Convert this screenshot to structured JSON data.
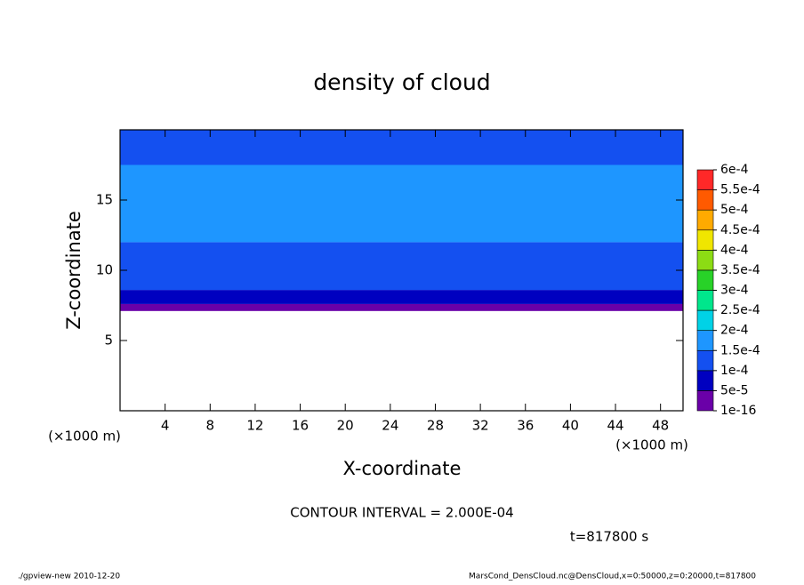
{
  "chart_data": {
    "type": "contour",
    "title": "density of cloud",
    "xlabel": "X-coordinate",
    "ylabel": "Z-coordinate",
    "xunit_left": "(×1000 m)",
    "xunit_right": "(×1000 m)",
    "contour_interval": "CONTOUR INTERVAL = 2.000E-04",
    "time_label": "t=817800 s",
    "footer_left": "./gpview-new   2010-12-20",
    "footer_right": "MarsCond_DensCloud.nc@DensCloud,x=0:50000,z=0:20000,t=817800",
    "xlim": [
      0,
      50
    ],
    "ylim": [
      0,
      20
    ],
    "xticks": [
      4,
      8,
      12,
      16,
      20,
      24,
      28,
      32,
      36,
      40,
      44,
      48
    ],
    "yticks": [
      5,
      10,
      15
    ],
    "z_bounds": [
      7.1,
      7.6,
      8.6,
      12,
      17.5,
      20
    ],
    "density": [
      3e-05,
      7e-05,
      0.00013,
      0.00017,
      0.00013
    ],
    "levels": [
      {
        "value": 1e-16,
        "label": "1e-16"
      },
      {
        "value": 5e-05,
        "label": "5e-5"
      },
      {
        "value": 0.0001,
        "label": "1e-4"
      },
      {
        "value": 0.00015,
        "label": "1.5e-4"
      },
      {
        "value": 0.0002,
        "label": "2e-4"
      },
      {
        "value": 0.00025,
        "label": "2.5e-4"
      },
      {
        "value": 0.0003,
        "label": "3e-4"
      },
      {
        "value": 0.00035,
        "label": "3.5e-4"
      },
      {
        "value": 0.0004,
        "label": "4e-4"
      },
      {
        "value": 0.00045,
        "label": "4.5e-4"
      },
      {
        "value": 0.0005,
        "label": "5e-4"
      },
      {
        "value": 0.00055,
        "label": "5.5e-4"
      },
      {
        "value": 0.0006,
        "label": "6e-4"
      }
    ],
    "level_colors": [
      "#6a00a8",
      "#0000c0",
      "#1450f0",
      "#1e96ff",
      "#00d2e6",
      "#00e68c",
      "#28d228",
      "#8cdc14",
      "#f0e600",
      "#ffaa00",
      "#ff5a00",
      "#ff2828"
    ],
    "top_color": "#ff9c9c"
  }
}
